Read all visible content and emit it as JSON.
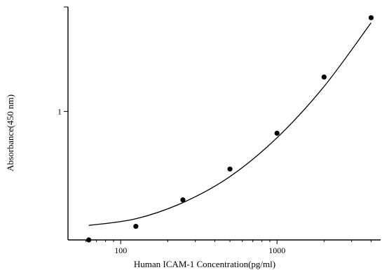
{
  "chart_data": {
    "type": "scatter",
    "title": "",
    "xlabel": "Human ICAM-1 Concentration(pg/ml)",
    "ylabel": "Absorbance(450 nm)",
    "x_scale": "log",
    "y_scale": "log",
    "xlim": [
      46,
      4600
    ],
    "ylim": [
      0.27,
      2.9
    ],
    "x_ticks": [
      {
        "value": 100,
        "label": "100"
      },
      {
        "value": 1000,
        "label": "1000"
      }
    ],
    "y_ticks": [
      {
        "value": 1,
        "label": "1"
      }
    ],
    "grid": false,
    "legend": "none",
    "series": [
      {
        "type": "scatter",
        "x": [
          62.5,
          125,
          250,
          500,
          1000,
          2000,
          4000
        ],
        "y": [
          0.27,
          0.31,
          0.406,
          0.556,
          0.801,
          1.42,
          2.6
        ]
      },
      {
        "type": "line",
        "x": [
          62.5,
          125,
          250,
          500,
          1000,
          2000,
          4000
        ],
        "y": [
          0.313,
          0.335,
          0.395,
          0.515,
          0.765,
          1.29,
          2.47
        ]
      }
    ]
  }
}
